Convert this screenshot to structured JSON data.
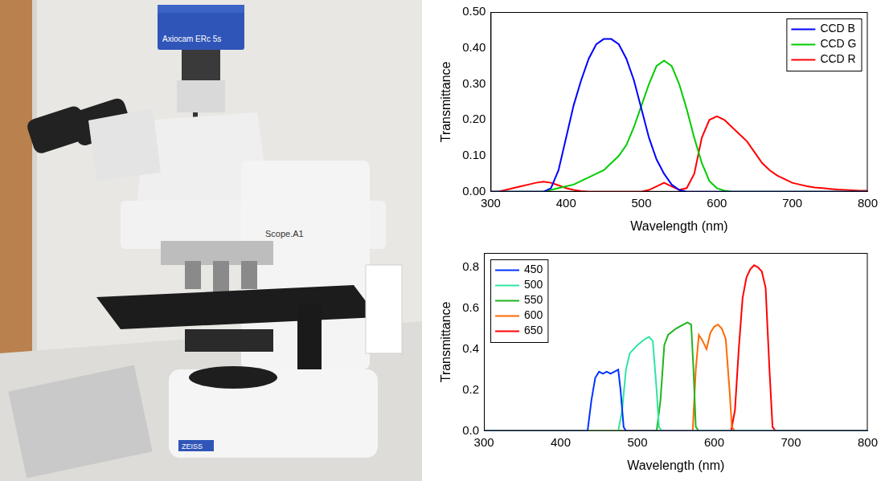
{
  "photo": {
    "labels": {
      "camera": "Axiocam ERc 5s",
      "stand": "Scope.A1",
      "brand": "ZEISS"
    }
  },
  "chart_data": [
    {
      "type": "line",
      "x_label": "Wavelength (nm)",
      "y_label": "Transmittance",
      "xlim": [
        300,
        800
      ],
      "xticks": [
        300,
        400,
        500,
        600,
        700,
        800
      ],
      "ylim": [
        0,
        0.5
      ],
      "yticks": [
        {
          "value": 0,
          "label": "0.00"
        },
        {
          "value": 0.1,
          "label": "0.10"
        },
        {
          "value": 0.2,
          "label": "0.20"
        },
        {
          "value": 0.3,
          "label": "0.30"
        },
        {
          "value": 0.4,
          "label": "0.40"
        },
        {
          "value": 0.5,
          "label": "0.50"
        }
      ],
      "grid": false,
      "legend": "upper right",
      "x": [
        300,
        310,
        320,
        330,
        340,
        350,
        360,
        370,
        380,
        390,
        400,
        410,
        420,
        430,
        440,
        450,
        460,
        470,
        480,
        490,
        500,
        510,
        520,
        530,
        540,
        550,
        560,
        570,
        580,
        590,
        600,
        610,
        620,
        630,
        640,
        650,
        660,
        670,
        680,
        690,
        700,
        710,
        720,
        730,
        740,
        750,
        760,
        770,
        780,
        790,
        800
      ],
      "series": [
        {
          "name": "CCD B",
          "color": "#0000ff",
          "values": [
            0,
            0,
            0,
            0,
            0,
            0,
            0,
            0,
            0.01,
            0.06,
            0.15,
            0.24,
            0.31,
            0.37,
            0.41,
            0.425,
            0.425,
            0.41,
            0.37,
            0.31,
            0.23,
            0.15,
            0.09,
            0.05,
            0.02,
            0.005,
            0,
            0,
            0,
            0,
            0,
            0,
            0,
            0,
            0,
            0,
            0,
            0,
            0,
            0,
            0,
            0,
            0,
            0,
            0,
            0,
            0,
            0,
            0,
            0,
            0
          ]
        },
        {
          "name": "CCD G",
          "color": "#00cc00",
          "values": [
            0,
            0,
            0,
            0,
            0,
            0,
            0,
            0,
            0.005,
            0.01,
            0.015,
            0.02,
            0.03,
            0.04,
            0.05,
            0.06,
            0.08,
            0.1,
            0.13,
            0.18,
            0.24,
            0.3,
            0.35,
            0.365,
            0.35,
            0.3,
            0.23,
            0.15,
            0.08,
            0.03,
            0.01,
            0.003,
            0,
            0,
            0,
            0,
            0,
            0,
            0,
            0,
            0,
            0,
            0,
            0,
            0,
            0,
            0,
            0,
            0,
            0,
            0
          ]
        },
        {
          "name": "CCD R",
          "color": "#ff0000",
          "values": [
            0,
            0,
            0.005,
            0.01,
            0.015,
            0.02,
            0.025,
            0.028,
            0.025,
            0.018,
            0.01,
            0.005,
            0.002,
            0,
            0,
            0,
            0,
            0,
            0,
            0,
            0,
            0.005,
            0.015,
            0.025,
            0.015,
            0.005,
            0.01,
            0.05,
            0.15,
            0.2,
            0.21,
            0.2,
            0.18,
            0.16,
            0.14,
            0.11,
            0.08,
            0.06,
            0.045,
            0.035,
            0.025,
            0.02,
            0.015,
            0.012,
            0.01,
            0.008,
            0.006,
            0.005,
            0.004,
            0.003,
            0.003
          ]
        }
      ]
    },
    {
      "type": "line",
      "x_label": "Wavelength (nm)",
      "y_label": "Transmittance",
      "xlim": [
        300,
        800
      ],
      "xticks": [
        300,
        400,
        500,
        600,
        700,
        800
      ],
      "ylim": [
        0,
        0.87
      ],
      "yticks": [
        {
          "value": 0,
          "label": "0.0"
        },
        {
          "value": 0.2,
          "label": "0.2"
        },
        {
          "value": 0.4,
          "label": "0.4"
        },
        {
          "value": 0.6,
          "label": "0.6"
        },
        {
          "value": 0.8,
          "label": "0.8"
        }
      ],
      "grid": false,
      "legend": "upper left",
      "series": [
        {
          "name": "450",
          "color": "#0033ff",
          "x": [
            300,
            435,
            440,
            445,
            450,
            455,
            460,
            465,
            470,
            475,
            478,
            482,
            485,
            800
          ],
          "values": [
            0,
            0,
            0.15,
            0.26,
            0.29,
            0.28,
            0.29,
            0.28,
            0.29,
            0.3,
            0.2,
            0.02,
            0,
            0
          ]
        },
        {
          "name": "500",
          "color": "#2ee6a0",
          "x": [
            300,
            475,
            480,
            485,
            490,
            500,
            510,
            515,
            520,
            525,
            528,
            532,
            800
          ],
          "values": [
            0,
            0,
            0.1,
            0.3,
            0.38,
            0.42,
            0.45,
            0.46,
            0.44,
            0.2,
            0.02,
            0,
            0
          ]
        },
        {
          "name": "550",
          "color": "#1fb51f",
          "x": [
            300,
            525,
            530,
            535,
            540,
            550,
            560,
            565,
            570,
            573,
            576,
            580,
            800
          ],
          "values": [
            0,
            0,
            0.15,
            0.42,
            0.47,
            0.5,
            0.52,
            0.53,
            0.52,
            0.3,
            0.02,
            0,
            0
          ]
        },
        {
          "name": "600",
          "color": "#ff6a00",
          "x": [
            300,
            572,
            576,
            580,
            585,
            590,
            595,
            600,
            605,
            610,
            615,
            620,
            623,
            627,
            800
          ],
          "values": [
            0,
            0,
            0.3,
            0.47,
            0.44,
            0.4,
            0.48,
            0.51,
            0.52,
            0.5,
            0.45,
            0.2,
            0.02,
            0,
            0
          ]
        },
        {
          "name": "650",
          "color": "#ff0000",
          "x": [
            300,
            622,
            627,
            632,
            637,
            642,
            647,
            652,
            657,
            662,
            667,
            672,
            676,
            680,
            800
          ],
          "values": [
            0,
            0,
            0.1,
            0.4,
            0.65,
            0.75,
            0.79,
            0.81,
            0.8,
            0.78,
            0.7,
            0.3,
            0.02,
            0,
            0
          ]
        }
      ]
    }
  ]
}
